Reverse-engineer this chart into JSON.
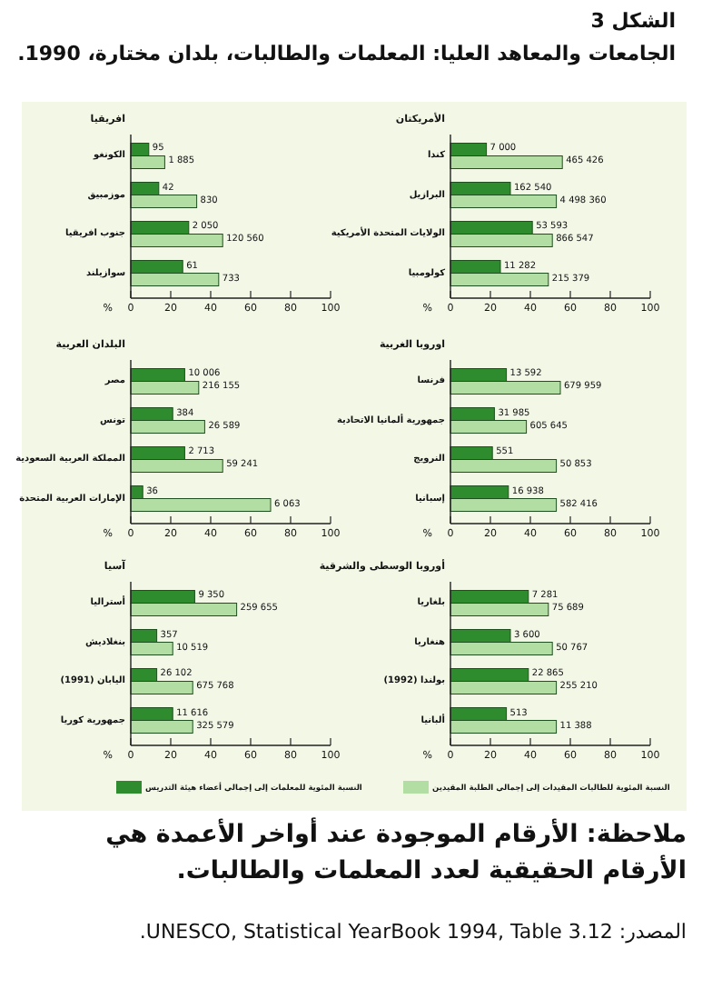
{
  "chart_data": [
    {
      "type": "bar",
      "orientation": "horizontal",
      "title": "الشكل 3",
      "subtitle": "الجامعات والمعاهد العليا: المعلمات والطالبات، بلدان مختارة، 1990.",
      "ylabel": "الأمريكتان",
      "xlabel": "%",
      "categories": [
        "كندا",
        "البرازيل",
        "الولايات المتحدة الأمريكية",
        "كولومبيا"
      ],
      "xlim": [
        0,
        100
      ],
      "xticks": [
        0,
        20,
        40,
        60,
        80,
        100
      ],
      "series": [
        {
          "color": "#2e8b2e",
          "values": [
            18,
            30,
            41,
            25
          ]
        },
        {
          "color": "#b2dea4",
          "values": [
            56,
            53,
            51,
            49
          ]
        }
      ],
      "annotations": [
        {
          "text": "7 000",
          "x": 18,
          "y": "كندا"
        },
        {
          "text": "465 426",
          "x": 56,
          "y": "كندا"
        },
        {
          "text": "162 540",
          "x": 30,
          "y": "البرازيل"
        },
        {
          "text": "4 498 360",
          "x": 53,
          "y": "البرازيل"
        },
        {
          "text": "53 593",
          "x": 41,
          "y": "الولايات المتحدة الأمريكية"
        },
        {
          "text": "866 547",
          "x": 51,
          "y": "الولايات المتحدة الأمريكية"
        },
        {
          "text": "11 282",
          "x": 25,
          "y": "كولومبيا"
        },
        {
          "text": "215 379",
          "x": 49,
          "y": "كولومبيا"
        }
      ]
    },
    {
      "type": "bar",
      "orientation": "horizontal",
      "ylabel": "افريقيا",
      "xlabel": "%",
      "categories": [
        "الكونغو",
        "موزمبيق",
        "جنوب افريقيا",
        "سوازيلند"
      ],
      "xlim": [
        0,
        100
      ],
      "xticks": [
        0,
        20,
        40,
        60,
        80,
        100
      ],
      "series": [
        {
          "color": "#2e8b2e",
          "values": [
            9,
            14,
            29,
            26
          ]
        },
        {
          "color": "#b2dea4",
          "values": [
            17,
            33,
            46,
            44
          ]
        }
      ],
      "annotations": [
        {
          "text": "95",
          "x": 9,
          "y": "الكونغو"
        },
        {
          "text": "1 885",
          "x": 17,
          "y": "الكونغو"
        },
        {
          "text": "42",
          "x": 14,
          "y": "موزمبيق"
        },
        {
          "text": "830",
          "x": 33,
          "y": "موزمبيق"
        },
        {
          "text": "2 050",
          "x": 29,
          "y": "جنوب افريقيا"
        },
        {
          "text": "120 560",
          "x": 46,
          "y": "جنوب افريقيا"
        },
        {
          "text": "61",
          "x": 26,
          "y": "سوازيلند"
        },
        {
          "text": "733",
          "x": 44,
          "y": "سوازيلند"
        }
      ]
    },
    {
      "type": "bar",
      "orientation": "horizontal",
      "ylabel": "اوروبا الغربية",
      "xlabel": "%",
      "categories": [
        "فرنسا",
        "جمهورية ألمانيا الاتحادية",
        "النرويج",
        "إسبانيا"
      ],
      "xlim": [
        0,
        100
      ],
      "xticks": [
        0,
        20,
        40,
        60,
        80,
        100
      ],
      "series": [
        {
          "color": "#2e8b2e",
          "values": [
            28,
            22,
            21,
            29
          ]
        },
        {
          "color": "#b2dea4",
          "values": [
            55,
            38,
            53,
            53
          ]
        }
      ],
      "annotations": [
        {
          "text": "13 592",
          "x": 28,
          "y": "فرنسا"
        },
        {
          "text": "679 959",
          "x": 55,
          "y": "فرنسا"
        },
        {
          "text": "31 985",
          "x": 22,
          "y": "جمهورية ألمانيا الاتحادية"
        },
        {
          "text": "605 645",
          "x": 38,
          "y": "جمهورية ألمانيا الاتحادية"
        },
        {
          "text": "551",
          "x": 21,
          "y": "النرويج"
        },
        {
          "text": "50 853",
          "x": 53,
          "y": "النرويج"
        },
        {
          "text": "16 938",
          "x": 29,
          "y": "إسبانيا"
        },
        {
          "text": "582 416",
          "x": 53,
          "y": "إسبانيا"
        }
      ]
    },
    {
      "type": "bar",
      "orientation": "horizontal",
      "ylabel": "البلدان العربية",
      "xlabel": "%",
      "categories": [
        "مصر",
        "تونس",
        "المملكة العربية السعودية",
        "الإمارات العربية المتحدة"
      ],
      "xlim": [
        0,
        100
      ],
      "xticks": [
        0,
        20,
        40,
        60,
        80,
        100
      ],
      "series": [
        {
          "color": "#2e8b2e",
          "values": [
            27,
            21,
            27,
            6
          ]
        },
        {
          "color": "#b2dea4",
          "values": [
            34,
            37,
            46,
            70
          ]
        }
      ],
      "annotations": [
        {
          "text": "10 006",
          "x": 27,
          "y": "مصر"
        },
        {
          "text": "216 155",
          "x": 34,
          "y": "مصر"
        },
        {
          "text": "384",
          "x": 21,
          "y": "تونس"
        },
        {
          "text": "26 589",
          "x": 37,
          "y": "تونس"
        },
        {
          "text": "2 713",
          "x": 27,
          "y": "المملكة العربية السعودية"
        },
        {
          "text": "59 241",
          "x": 46,
          "y": "المملكة العربية السعودية"
        },
        {
          "text": "36",
          "x": 6,
          "y": "الإمارات العربية المتحدة"
        },
        {
          "text": "6 063",
          "x": 70,
          "y": "الإمارات العربية المتحدة"
        }
      ]
    },
    {
      "type": "bar",
      "orientation": "horizontal",
      "ylabel": "أوروبا الوسطى والشرقية",
      "xlabel": "%",
      "categories": [
        "بلغاريا",
        "هنغاريا",
        "بولندا (1992)",
        "ألبانيا"
      ],
      "xlim": [
        0,
        100
      ],
      "xticks": [
        0,
        20,
        40,
        60,
        80,
        100
      ],
      "series": [
        {
          "color": "#2e8b2e",
          "values": [
            39,
            30,
            39,
            28
          ]
        },
        {
          "color": "#b2dea4",
          "values": [
            49,
            51,
            53,
            53
          ]
        }
      ],
      "annotations": [
        {
          "text": "7 281",
          "x": 39,
          "y": "بلغاريا"
        },
        {
          "text": "75 689",
          "x": 49,
          "y": "بلغاريا"
        },
        {
          "text": "3 600",
          "x": 30,
          "y": "هنغاريا"
        },
        {
          "text": "50 767",
          "x": 51,
          "y": "هنغاريا"
        },
        {
          "text": "22 865",
          "x": 39,
          "y": "بولندا (1992)"
        },
        {
          "text": "255 210",
          "x": 53,
          "y": "بولندا (1992)"
        },
        {
          "text": "513",
          "x": 28,
          "y": "ألبانيا"
        },
        {
          "text": "11 388",
          "x": 53,
          "y": "ألبانيا"
        }
      ]
    },
    {
      "type": "bar",
      "orientation": "horizontal",
      "ylabel": "آسيا",
      "xlabel": "%",
      "categories": [
        "أستراليا",
        "بنغلاديش",
        "اليابان (1991)",
        "جمهورية كوريا"
      ],
      "xlim": [
        0,
        100
      ],
      "xticks": [
        0,
        20,
        40,
        60,
        80,
        100
      ],
      "legend": "bottom",
      "series": [
        {
          "name": "النسبة المئوية للمعلمات إلى إجمالي أعضاء هيئة التدريس",
          "color": "#2e8b2e",
          "values": [
            32,
            13,
            13,
            21
          ]
        },
        {
          "name": "النسبة المئوية للطالبات المقيدات إلى إجمالي الطلبة المقيدين",
          "color": "#b2dea4",
          "values": [
            53,
            21,
            31,
            31
          ]
        }
      ],
      "annotations": [
        {
          "text": "9 350",
          "x": 32,
          "y": "أستراليا"
        },
        {
          "text": "259 655",
          "x": 53,
          "y": "أستراليا"
        },
        {
          "text": "357",
          "x": 13,
          "y": "بنغلاديش"
        },
        {
          "text": "10 519",
          "x": 21,
          "y": "بنغلاديش"
        },
        {
          "text": "26 102",
          "x": 13,
          "y": "اليابان (1991)"
        },
        {
          "text": "675 768",
          "x": 31,
          "y": "اليابان (1991)"
        },
        {
          "text": "11 616",
          "x": 21,
          "y": "جمهورية كوريا"
        },
        {
          "text": "325 579",
          "x": 31,
          "y": "جمهورية كوريا"
        },
        "ملاحظة: الأرقام الموجودة عند أواخر الأعمدة هي الأرقام الحقيقية لعدد المعلمات والطالبات.",
        "المصدر: UNESCO, Statistical YearBook 1994, Table 3.12."
      ]
    }
  ]
}
